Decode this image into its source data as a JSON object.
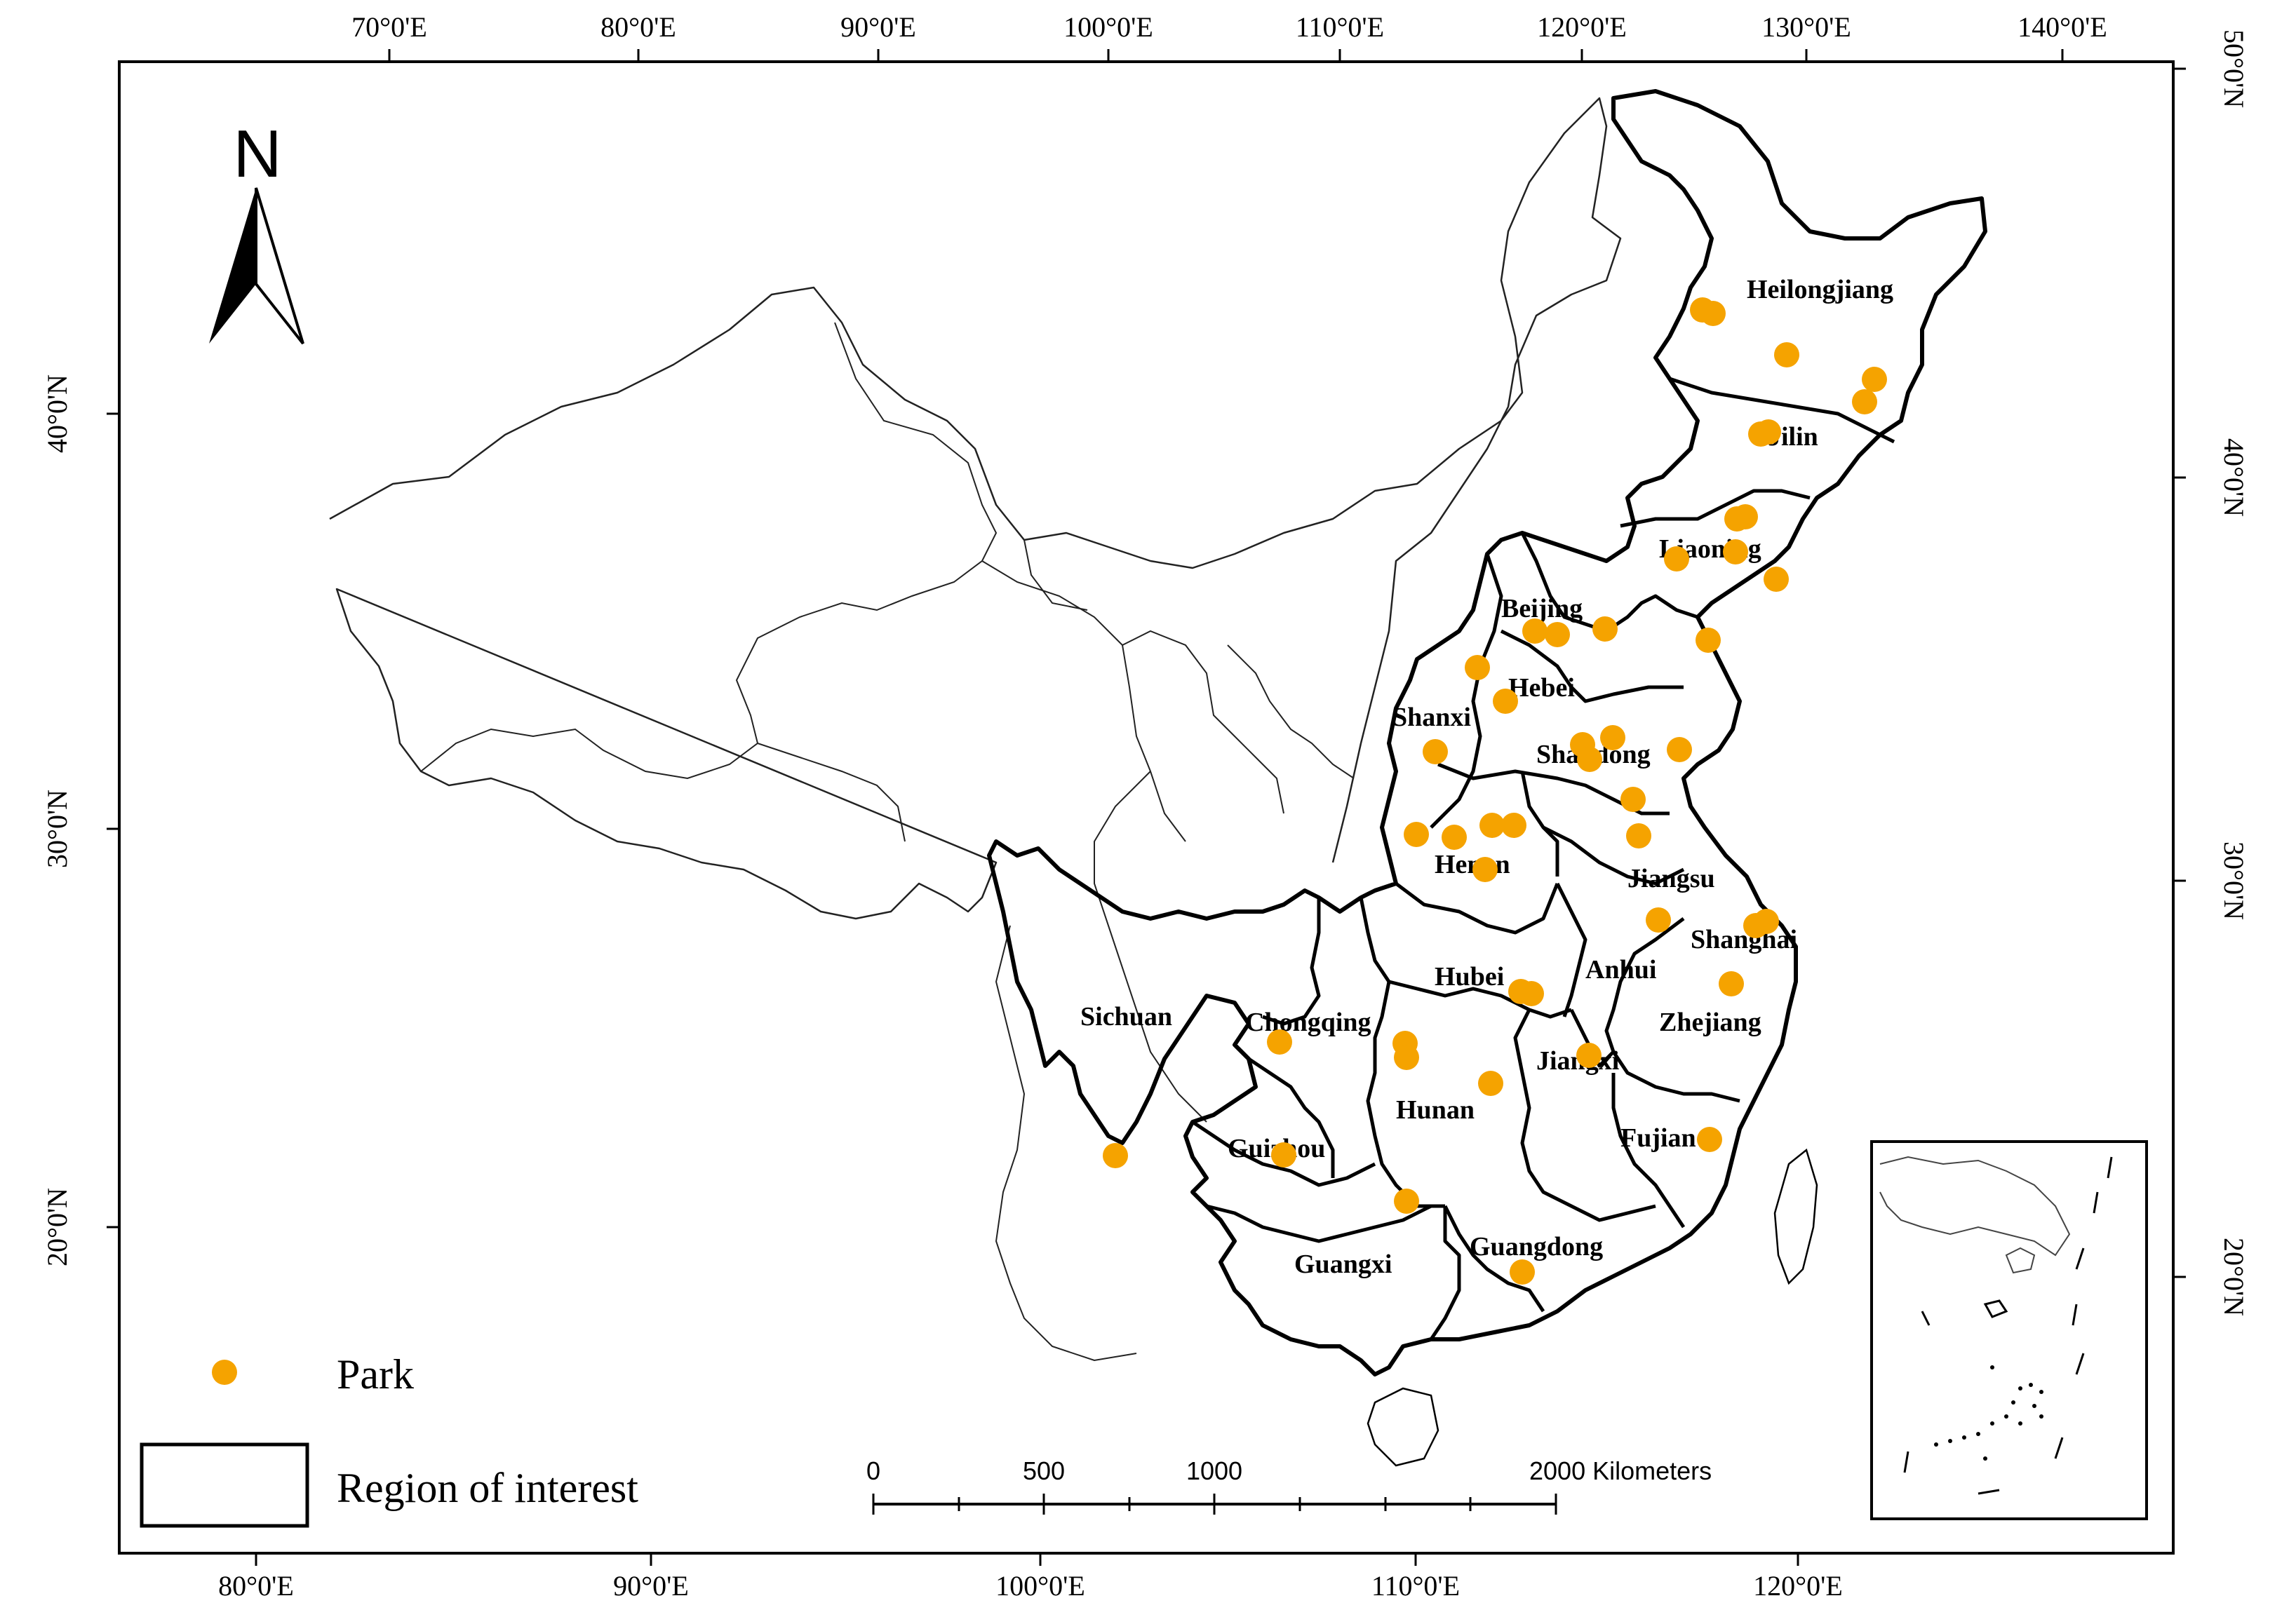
{
  "ticks": {
    "top": [
      "70°0'E",
      "80°0'E",
      "90°0'E",
      "100°0'E",
      "110°0'E",
      "120°0'E",
      "130°0'E",
      "140°0'E"
    ],
    "bottom": [
      "80°0'E",
      "90°0'E",
      "100°0'E",
      "110°0'E",
      "120°0'E"
    ],
    "left": [
      "40°0'N",
      "30°0'N",
      "20°0'N"
    ],
    "right": [
      "50°0'N",
      "40°0'N",
      "30°0'N",
      "20°0'N"
    ]
  },
  "north_arrow": {
    "label": "N"
  },
  "provinces": [
    "Heilongjiang",
    "Jilin",
    "Liaoning",
    "Beijing",
    "Hebei",
    "Shanxi",
    "Shandong",
    "Henan",
    "Jiangsu",
    "Shanghai",
    "Anhui",
    "Hubei",
    "Zhejiang",
    "Sichuan",
    "Chongqing",
    "Jiangxi",
    "Hunan",
    "Guizhou",
    "Fujian",
    "Guangxi",
    "Guangdong"
  ],
  "legend": {
    "park": "Park",
    "region": "Region of interest"
  },
  "scale_bar": {
    "labels": [
      "0",
      "500",
      "1000",
      "2000 Kilometers"
    ]
  },
  "colors": {
    "park": "#F5A300",
    "boundary_bold": "#000000",
    "boundary_thin": "#333333"
  },
  "park_count": 43
}
